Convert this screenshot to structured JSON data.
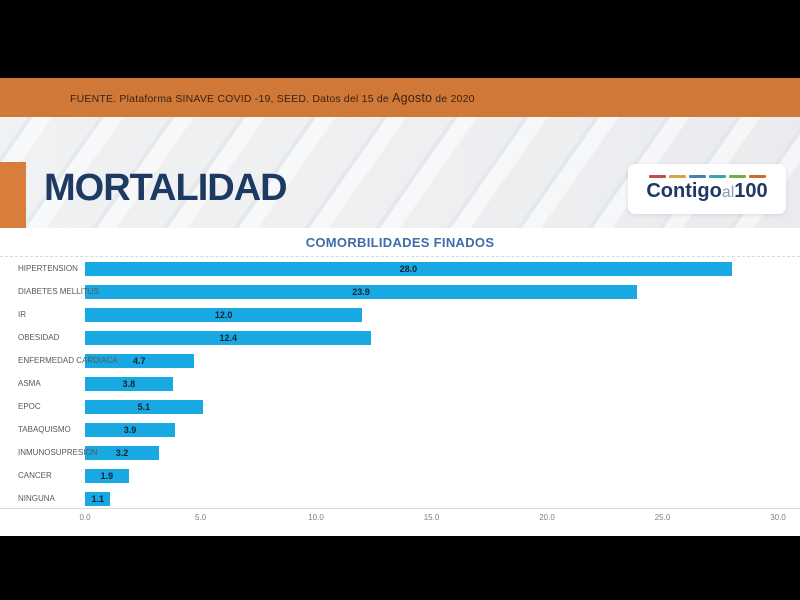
{
  "banner": {
    "text_prefix": "FUENTE. Plataforma SINAVE COVID -19, SEED. Datos del 15 de ",
    "text_month": "Agosto",
    "text_suffix": " de 2020"
  },
  "header": {
    "title": "MORTALIDAD",
    "logo": {
      "word1": "Contigo",
      "word2": "al",
      "word3": "100",
      "bar_colors": [
        "#c0504d",
        "#d9a441",
        "#4a7ebb",
        "#3aa6a6",
        "#6faf46",
        "#cd6a33"
      ]
    }
  },
  "chart_data": {
    "type": "bar",
    "orientation": "horizontal",
    "title": "COMORBILIDADES FINADOS",
    "categories": [
      "HIPERTENSION",
      "DIABETES MELLITUS",
      "IR",
      "OBESIDAD",
      "ENFERMEDAD CARDIACA",
      "ASMA",
      "EPOC",
      "TABAQUISMO",
      "INMUNOSUPRESION",
      "CANCER",
      "NINGUNA"
    ],
    "values": [
      28.0,
      23.9,
      12.0,
      12.4,
      4.7,
      3.8,
      5.1,
      3.9,
      3.2,
      1.9,
      1.1
    ],
    "value_labels": [
      "28.0",
      "23.9",
      "12.0",
      "12.4",
      "4.7",
      "3.8",
      "5.1",
      "3.9",
      "3.2",
      "1.9",
      "1.1"
    ],
    "xlabel": "",
    "ylabel": "",
    "xlim": [
      0,
      30
    ],
    "x_ticks": [
      "0.0",
      "5.0",
      "10.0",
      "15.0",
      "20.0",
      "25.0",
      "30.0"
    ],
    "grid": false,
    "legend": false,
    "value_labels_position": "center-of-bar",
    "bar_color": "#18a8e2",
    "value_label_color": "#16222e",
    "category_label_color": "#595959",
    "tick_label_color": "#7f7f7f"
  },
  "colors": {
    "letterbox": "#000000",
    "banner_bg": "#cf7837",
    "banner_text": "#3b2213",
    "accent_block": "#d87e3d",
    "title_navy": "#1e3a63",
    "chart_title_blue": "#3f6cab",
    "slide_bg": "#ffffff"
  }
}
